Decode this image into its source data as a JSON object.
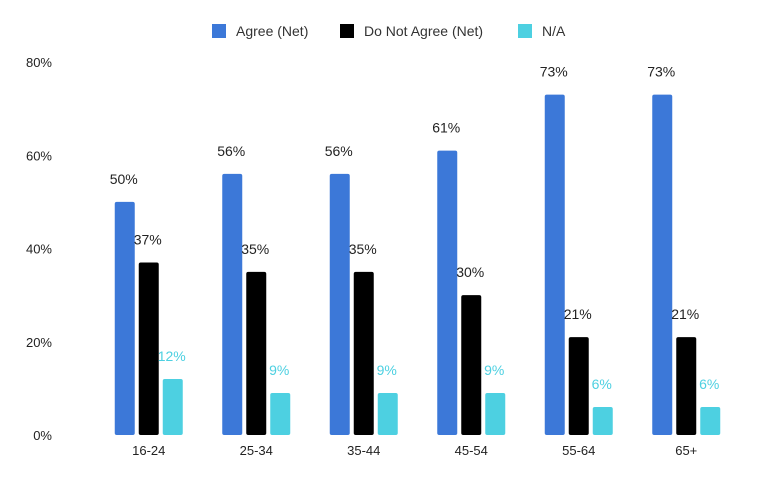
{
  "chart_data": {
    "type": "bar",
    "title": "",
    "xlabel": "",
    "ylabel": "",
    "ylim": [
      0,
      80
    ],
    "yticks": [
      0,
      20,
      40,
      60,
      80
    ],
    "ytick_labels": [
      "0%",
      "20%",
      "40%",
      "60%",
      "80%"
    ],
    "grid": false,
    "legend_position": "top-center",
    "categories": [
      "16-24",
      "25-34",
      "35-44",
      "45-54",
      "55-64",
      "65+"
    ],
    "series": [
      {
        "name": "Agree (Net)",
        "color": "#3c78d8",
        "values": [
          50,
          56,
          56,
          61,
          73,
          73
        ],
        "labels": [
          "50%",
          "56%",
          "56%",
          "61%",
          "73%",
          "73%"
        ],
        "label_color": "#222222"
      },
      {
        "name": "Do Not Agree (Net)",
        "color": "#000000",
        "values": [
          37,
          35,
          35,
          30,
          21,
          21
        ],
        "labels": [
          "37%",
          "35%",
          "35%",
          "30%",
          "21%",
          "21%"
        ],
        "label_color": "#222222"
      },
      {
        "name": "N/A",
        "color": "#4dd0e1",
        "values": [
          12,
          9,
          9,
          9,
          6,
          6
        ],
        "labels": [
          "12%",
          "9%",
          "9%",
          "9%",
          "6%",
          "6%"
        ],
        "label_color": "#4dd0e1"
      }
    ]
  }
}
